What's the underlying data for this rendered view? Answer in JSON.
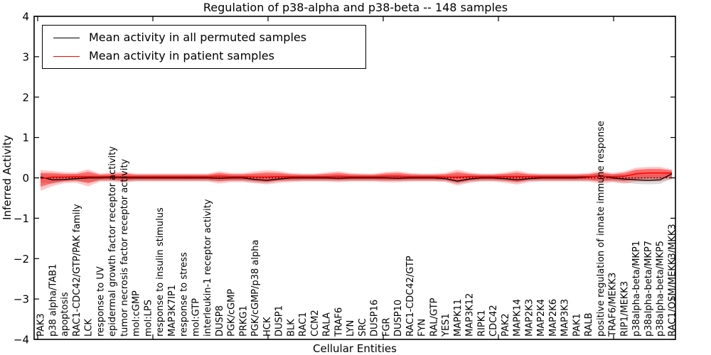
{
  "figure": {
    "title": "Regulation of p38-alpha and p38-beta -- 148 samples",
    "xlabel": "Cellular Entities",
    "ylabel": "Inferred Activity"
  },
  "legend": {
    "entries": [
      {
        "label": "Mean activity in all permuted samples",
        "color": "#000000"
      },
      {
        "label": "Mean activity in patient samples",
        "color": "#ff0000"
      }
    ]
  },
  "chart_data": {
    "type": "line",
    "title": "Regulation of p38-alpha and p38-beta -- 148 samples",
    "xlabel": "Cellular Entities",
    "ylabel": "Inferred Activity",
    "ylim": [
      -4,
      4
    ],
    "yticks": [
      4,
      3,
      2,
      1,
      0,
      -1,
      -2,
      -3,
      -4
    ],
    "grid": false,
    "legend_position": "upper left",
    "zero_line_style": "dotted",
    "x_label_rotation_deg": 90,
    "categories": [
      "PAK3",
      "p38 alpha/TAB1",
      "apoptosis",
      "RAC1-CDC42/GTP/PAK family",
      "LCK",
      "response to UV",
      "epidermal growth factor receptor activity",
      "tumor necrosis factor receptor activity",
      "mol:cGMP",
      "mol:LPS",
      "response to insulin stimulus",
      "MAP3K7IP1",
      "response to stress",
      "mol:GTP",
      "interleukin-1 receptor activity",
      "DUSP8",
      "PGK/cGMP",
      "PRKG1",
      "PGK/cGMP/p38 alpha",
      "HCK",
      "DUSP1",
      "BLK",
      "RAC1",
      "CCM2",
      "RALA",
      "TRAF6",
      "LYN",
      "SRC",
      "DUSP16",
      "FGR",
      "DUSP10",
      "RAC1-CDC42/GTP",
      "FYN",
      "RAL/GTP",
      "YES1",
      "MAPK11",
      "MAP3K12",
      "RIPK1",
      "CDC42",
      "PAK2",
      "MAPK14",
      "MAP2K3",
      "MAP2K4",
      "MAP2K6",
      "MAP3K3",
      "PAK1",
      "RALB",
      "positive regulation of innate immune response",
      "TRAF6/MEKK3",
      "RIP1/MEKK3",
      "p38alpha-beta/MKP1",
      "p38alpha-beta/MKP7",
      "p38alpha-beta/MKP5",
      "RAC1/OSM/MEKK3/MKK3"
    ],
    "series": [
      {
        "name": "Mean activity in all permuted samples",
        "color": "#000000",
        "values": [
          0.02,
          -0.05,
          -0.04,
          -0.02,
          0,
          0,
          0.01,
          0,
          0,
          0,
          0,
          0,
          0,
          0,
          0,
          -0.01,
          0,
          0,
          -0.04,
          -0.06,
          -0.03,
          0,
          0,
          0,
          0,
          -0.01,
          0,
          0,
          0,
          0,
          -0.01,
          0,
          0,
          0,
          -0.02,
          -0.08,
          -0.03,
          0,
          0,
          -0.02,
          -0.05,
          -0.02,
          0,
          0,
          0,
          0,
          0.02,
          0.05,
          0,
          -0.03,
          -0.05,
          -0.06,
          -0.05,
          0.1
        ]
      },
      {
        "name": "Mean activity in patient samples",
        "color": "#ff0000",
        "values": [
          -0.02,
          0.02,
          0.02,
          0.03,
          0.03,
          0.03,
          0.03,
          0.03,
          0.03,
          0.03,
          0.03,
          0.03,
          0.03,
          0.03,
          0.03,
          0.04,
          0.03,
          0.03,
          0.02,
          0.02,
          0.03,
          0.03,
          0.03,
          0.03,
          0.03,
          0.04,
          0.03,
          0.03,
          0.03,
          0.04,
          0.04,
          0.03,
          0.03,
          0.03,
          0.02,
          0.02,
          0.03,
          0.03,
          0.03,
          0.03,
          0.03,
          0.03,
          0.03,
          0.03,
          0.03,
          0.03,
          0.03,
          0.04,
          0.03,
          0.04,
          0.1,
          0.12,
          0.12,
          0.12
        ]
      }
    ],
    "bands": [
      {
        "name": "permuted-samples-band",
        "color": "#999999",
        "opacity": 0.35,
        "high": [
          0.1,
          0.08,
          0.08,
          0.08,
          0.08,
          0.07,
          0.07,
          0.07,
          0.07,
          0.07,
          0.07,
          0.07,
          0.07,
          0.07,
          0.07,
          0.08,
          0.07,
          0.07,
          0.08,
          0.08,
          0.08,
          0.07,
          0.07,
          0.07,
          0.07,
          0.07,
          0.07,
          0.07,
          0.07,
          0.07,
          0.07,
          0.07,
          0.07,
          0.07,
          0.07,
          0.09,
          0.08,
          0.07,
          0.07,
          0.08,
          0.08,
          0.07,
          0.07,
          0.07,
          0.07,
          0.07,
          0.08,
          0.12,
          0.08,
          0.08,
          0.08,
          0.08,
          0.08,
          0.14
        ],
        "low": [
          -0.12,
          -0.14,
          -0.1,
          -0.08,
          -0.1,
          -0.08,
          -0.08,
          -0.08,
          -0.08,
          -0.08,
          -0.08,
          -0.08,
          -0.08,
          -0.08,
          -0.08,
          -0.09,
          -0.08,
          -0.08,
          -0.12,
          -0.13,
          -0.09,
          -0.08,
          -0.08,
          -0.08,
          -0.08,
          -0.08,
          -0.08,
          -0.08,
          -0.08,
          -0.08,
          -0.08,
          -0.08,
          -0.08,
          -0.08,
          -0.09,
          -0.15,
          -0.1,
          -0.08,
          -0.08,
          -0.09,
          -0.12,
          -0.08,
          -0.08,
          -0.08,
          -0.08,
          -0.08,
          -0.08,
          -0.08,
          -0.09,
          -0.12,
          -0.15,
          -0.16,
          -0.15,
          -0.02
        ]
      },
      {
        "name": "patient-samples-band",
        "color": "#ff0000",
        "opacity": 0.45,
        "high": [
          0.12,
          0.12,
          0.1,
          0.1,
          0.15,
          0.08,
          0.1,
          0.11,
          0.08,
          0.08,
          0.08,
          0.08,
          0.08,
          0.08,
          0.08,
          0.12,
          0.09,
          0.09,
          0.11,
          0.13,
          0.12,
          0.09,
          0.08,
          0.08,
          0.1,
          0.12,
          0.09,
          0.08,
          0.08,
          0.11,
          0.12,
          0.09,
          0.08,
          0.08,
          0.09,
          0.14,
          0.1,
          0.08,
          0.08,
          0.1,
          0.13,
          0.09,
          0.08,
          0.08,
          0.08,
          0.08,
          0.09,
          0.13,
          0.09,
          0.12,
          0.2,
          0.22,
          0.22,
          0.18
        ],
        "low": [
          -0.22,
          -0.13,
          -0.08,
          -0.07,
          -0.13,
          -0.05,
          -0.05,
          -0.07,
          -0.05,
          -0.05,
          -0.05,
          -0.05,
          -0.05,
          -0.05,
          -0.05,
          -0.08,
          -0.06,
          -0.06,
          -0.08,
          -0.1,
          -0.07,
          -0.06,
          -0.05,
          -0.05,
          -0.05,
          -0.06,
          -0.05,
          -0.05,
          -0.05,
          -0.06,
          -0.06,
          -0.05,
          -0.05,
          -0.05,
          -0.06,
          -0.12,
          -0.07,
          -0.05,
          -0.05,
          -0.07,
          -0.1,
          -0.06,
          -0.05,
          -0.05,
          -0.05,
          -0.05,
          -0.05,
          -0.08,
          -0.06,
          -0.08,
          -0.03,
          -0.02,
          -0.02,
          0.02
        ]
      }
    ]
  }
}
